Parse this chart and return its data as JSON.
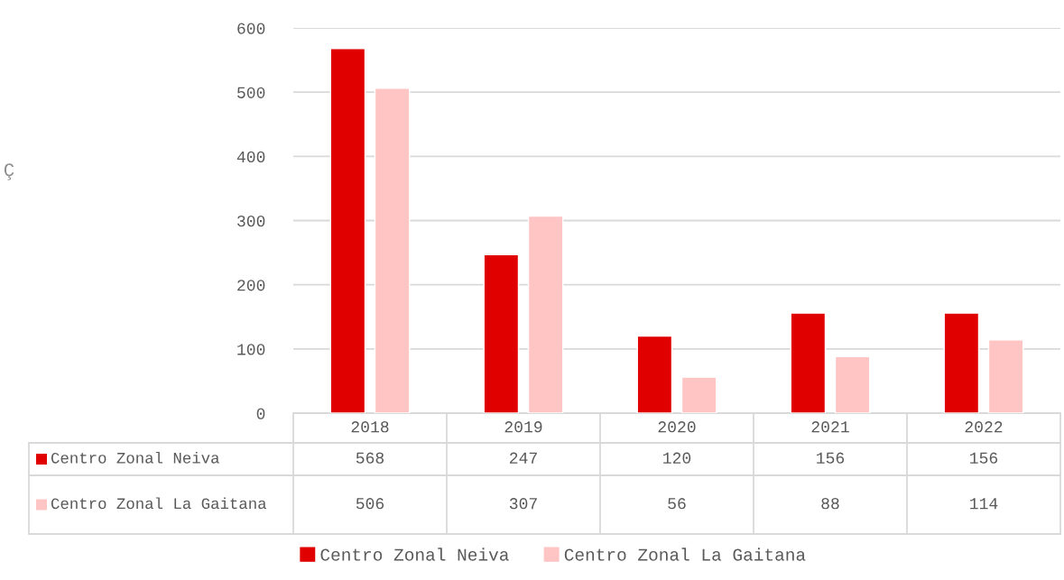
{
  "chart_data": {
    "type": "bar",
    "annotations": [
      "Ç"
    ],
    "categories": [
      "2018",
      "2019",
      "2020",
      "2021",
      "2022"
    ],
    "series": [
      {
        "name": "Centro Zonal Neiva",
        "color": "#e00000",
        "values": [
          568,
          247,
          120,
          156,
          156
        ]
      },
      {
        "name": "Centro Zonal La Gaitana",
        "color": "#ffc4c4",
        "values": [
          506,
          307,
          56,
          88,
          114
        ]
      }
    ],
    "ylim": [
      0,
      600
    ],
    "yticks": [
      0,
      100,
      200,
      300,
      400,
      500,
      600
    ],
    "grid": "y",
    "data_labels": true,
    "legend": "bottom"
  }
}
